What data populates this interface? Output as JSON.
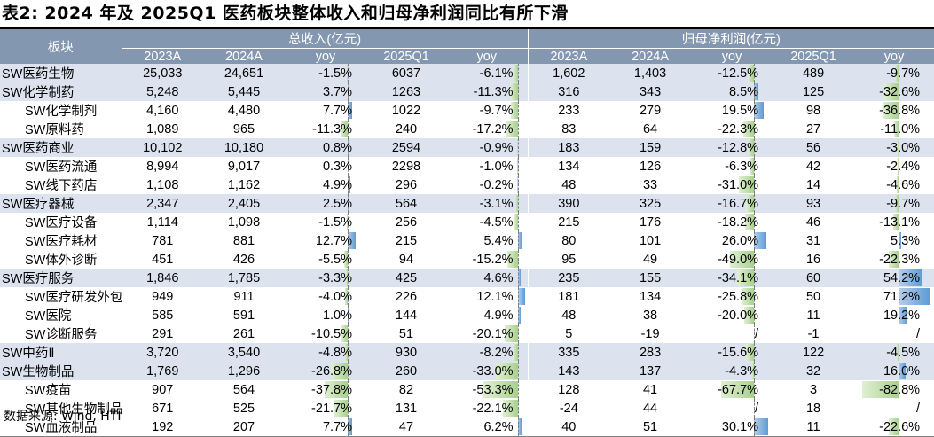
{
  "title": "表2:  2024 年及 2025Q1 医药板块整体收入和归母净利润同比有所下滑",
  "source": "数据来源:  Wind,  HTI",
  "headers": {
    "sector": "板块",
    "revenue_group": "总收入(亿元)",
    "profit_group": "归母净利润(亿元)",
    "cols": [
      "2023A",
      "2024A",
      "yoy",
      "2025Q1",
      "yoy",
      "2023A",
      "2024A",
      "yoy",
      "2025Q1",
      "yoy"
    ]
  },
  "rows": [
    {
      "name": "SW医药生物",
      "level": 1,
      "rev23": "25,033",
      "rev24": "24,651",
      "rev_yoy": "-1.5%",
      "rev_yoy_num": -1.5,
      "rev25q1": "6037",
      "rev25q1_yoy": "-6.1%",
      "rev25q1_yoy_num": -6.1,
      "np23": "1,602",
      "np24": "1,403",
      "np_yoy": "-12.5%",
      "np_yoy_num": -12.5,
      "np25q1": "489",
      "np25q1_yoy": "-9.7%",
      "np25q1_yoy_num": -9.7
    },
    {
      "name": "SW化学制药",
      "level": 1,
      "rev23": "5,248",
      "rev24": "5,445",
      "rev_yoy": "3.7%",
      "rev_yoy_num": 3.7,
      "rev25q1": "1263",
      "rev25q1_yoy": "-11.3%",
      "rev25q1_yoy_num": -11.3,
      "np23": "316",
      "np24": "343",
      "np_yoy": "8.5%",
      "np_yoy_num": 8.5,
      "np25q1": "125",
      "np25q1_yoy": "-32.6%",
      "np25q1_yoy_num": -32.6
    },
    {
      "name": "SW化学制剂",
      "level": 2,
      "rev23": "4,160",
      "rev24": "4,480",
      "rev_yoy": "7.7%",
      "rev_yoy_num": 7.7,
      "rev25q1": "1022",
      "rev25q1_yoy": "-9.7%",
      "rev25q1_yoy_num": -9.7,
      "np23": "233",
      "np24": "279",
      "np_yoy": "19.5%",
      "np_yoy_num": 19.5,
      "np25q1": "98",
      "np25q1_yoy": "-36.8%",
      "np25q1_yoy_num": -36.8
    },
    {
      "name": "SW原料药",
      "level": 2,
      "rev23": "1,089",
      "rev24": "965",
      "rev_yoy": "-11.3%",
      "rev_yoy_num": -11.3,
      "rev25q1": "240",
      "rev25q1_yoy": "-17.2%",
      "rev25q1_yoy_num": -17.2,
      "np23": "83",
      "np24": "64",
      "np_yoy": "-22.3%",
      "np_yoy_num": -22.3,
      "np25q1": "27",
      "np25q1_yoy": "-11.0%",
      "np25q1_yoy_num": -11.0
    },
    {
      "name": "SW医药商业",
      "level": 1,
      "rev23": "10,102",
      "rev24": "10,180",
      "rev_yoy": "0.8%",
      "rev_yoy_num": 0.8,
      "rev25q1": "2594",
      "rev25q1_yoy": "-0.9%",
      "rev25q1_yoy_num": -0.9,
      "np23": "183",
      "np24": "159",
      "np_yoy": "-12.8%",
      "np_yoy_num": -12.8,
      "np25q1": "56",
      "np25q1_yoy": "-3.0%",
      "np25q1_yoy_num": -3.0
    },
    {
      "name": "SW医药流通",
      "level": 2,
      "rev23": "8,994",
      "rev24": "9,017",
      "rev_yoy": "0.3%",
      "rev_yoy_num": 0.3,
      "rev25q1": "2298",
      "rev25q1_yoy": "-1.0%",
      "rev25q1_yoy_num": -1.0,
      "np23": "134",
      "np24": "126",
      "np_yoy": "-6.3%",
      "np_yoy_num": -6.3,
      "np25q1": "42",
      "np25q1_yoy": "-2.4%",
      "np25q1_yoy_num": -2.4
    },
    {
      "name": "SW线下药店",
      "level": 2,
      "rev23": "1,108",
      "rev24": "1,162",
      "rev_yoy": "4.9%",
      "rev_yoy_num": 4.9,
      "rev25q1": "296",
      "rev25q1_yoy": "-0.2%",
      "rev25q1_yoy_num": -0.2,
      "np23": "48",
      "np24": "33",
      "np_yoy": "-31.0%",
      "np_yoy_num": -31.0,
      "np25q1": "14",
      "np25q1_yoy": "-4.6%",
      "np25q1_yoy_num": -4.6
    },
    {
      "name": "SW医疗器械",
      "level": 1,
      "rev23": "2,347",
      "rev24": "2,405",
      "rev_yoy": "2.5%",
      "rev_yoy_num": 2.5,
      "rev25q1": "564",
      "rev25q1_yoy": "-3.1%",
      "rev25q1_yoy_num": -3.1,
      "np23": "390",
      "np24": "325",
      "np_yoy": "-16.7%",
      "np_yoy_num": -16.7,
      "np25q1": "93",
      "np25q1_yoy": "-9.7%",
      "np25q1_yoy_num": -9.7
    },
    {
      "name": "SW医疗设备",
      "level": 2,
      "rev23": "1,114",
      "rev24": "1,098",
      "rev_yoy": "-1.5%",
      "rev_yoy_num": -1.5,
      "rev25q1": "256",
      "rev25q1_yoy": "-4.5%",
      "rev25q1_yoy_num": -4.5,
      "np23": "215",
      "np24": "176",
      "np_yoy": "-18.2%",
      "np_yoy_num": -18.2,
      "np25q1": "46",
      "np25q1_yoy": "-13.1%",
      "np25q1_yoy_num": -13.1
    },
    {
      "name": "SW医疗耗材",
      "level": 2,
      "rev23": "781",
      "rev24": "881",
      "rev_yoy": "12.7%",
      "rev_yoy_num": 12.7,
      "rev25q1": "215",
      "rev25q1_yoy": "5.4%",
      "rev25q1_yoy_num": 5.4,
      "np23": "80",
      "np24": "101",
      "np_yoy": "26.0%",
      "np_yoy_num": 26.0,
      "np25q1": "31",
      "np25q1_yoy": "5.3%",
      "np25q1_yoy_num": 5.3
    },
    {
      "name": "SW体外诊断",
      "level": 2,
      "rev23": "451",
      "rev24": "426",
      "rev_yoy": "-5.5%",
      "rev_yoy_num": -5.5,
      "rev25q1": "94",
      "rev25q1_yoy": "-15.2%",
      "rev25q1_yoy_num": -15.2,
      "np23": "95",
      "np24": "49",
      "np_yoy": "-49.0%",
      "np_yoy_num": -49.0,
      "np25q1": "16",
      "np25q1_yoy": "-22.3%",
      "np25q1_yoy_num": -22.3
    },
    {
      "name": "SW医疗服务",
      "level": 1,
      "rev23": "1,846",
      "rev24": "1,785",
      "rev_yoy": "-3.3%",
      "rev_yoy_num": -3.3,
      "rev25q1": "425",
      "rev25q1_yoy": "4.6%",
      "rev25q1_yoy_num": 4.6,
      "np23": "235",
      "np24": "155",
      "np_yoy": "-34.1%",
      "np_yoy_num": -34.1,
      "np25q1": "60",
      "np25q1_yoy": "54.2%",
      "np25q1_yoy_num": 54.2
    },
    {
      "name": "SW医疗研发外包",
      "level": 2,
      "rev23": "949",
      "rev24": "911",
      "rev_yoy": "-4.0%",
      "rev_yoy_num": -4.0,
      "rev25q1": "226",
      "rev25q1_yoy": "12.1%",
      "rev25q1_yoy_num": 12.1,
      "np23": "181",
      "np24": "134",
      "np_yoy": "-25.8%",
      "np_yoy_num": -25.8,
      "np25q1": "50",
      "np25q1_yoy": "71.2%",
      "np25q1_yoy_num": 71.2
    },
    {
      "name": "SW医院",
      "level": 2,
      "rev23": "585",
      "rev24": "591",
      "rev_yoy": "1.0%",
      "rev_yoy_num": 1.0,
      "rev25q1": "144",
      "rev25q1_yoy": "4.9%",
      "rev25q1_yoy_num": 4.9,
      "np23": "48",
      "np24": "38",
      "np_yoy": "-20.0%",
      "np_yoy_num": -20.0,
      "np25q1": "11",
      "np25q1_yoy": "19.2%",
      "np25q1_yoy_num": 19.2
    },
    {
      "name": "SW诊断服务",
      "level": 2,
      "rev23": "291",
      "rev24": "261",
      "rev_yoy": "-10.5%",
      "rev_yoy_num": -10.5,
      "rev25q1": "51",
      "rev25q1_yoy": "-20.1%",
      "rev25q1_yoy_num": -20.1,
      "np23": "5",
      "np24": "-19",
      "np_yoy": "/",
      "np_yoy_num": null,
      "np25q1": "-1",
      "np25q1_yoy": "/",
      "np25q1_yoy_num": null
    },
    {
      "name": "SW中药Ⅱ",
      "level": 1,
      "rev23": "3,720",
      "rev24": "3,540",
      "rev_yoy": "-4.8%",
      "rev_yoy_num": -4.8,
      "rev25q1": "930",
      "rev25q1_yoy": "-8.2%",
      "rev25q1_yoy_num": -8.2,
      "np23": "335",
      "np24": "283",
      "np_yoy": "-15.6%",
      "np_yoy_num": -15.6,
      "np25q1": "122",
      "np25q1_yoy": "-4.5%",
      "np25q1_yoy_num": -4.5
    },
    {
      "name": "SW生物制品",
      "level": 1,
      "rev23": "1,769",
      "rev24": "1,296",
      "rev_yoy": "-26.8%",
      "rev_yoy_num": -26.8,
      "rev25q1": "260",
      "rev25q1_yoy": "-33.0%",
      "rev25q1_yoy_num": -33.0,
      "np23": "143",
      "np24": "137",
      "np_yoy": "-4.3%",
      "np_yoy_num": -4.3,
      "np25q1": "32",
      "np25q1_yoy": "16.0%",
      "np25q1_yoy_num": 16.0
    },
    {
      "name": "SW疫苗",
      "level": 2,
      "rev23": "907",
      "rev24": "564",
      "rev_yoy": "-37.8%",
      "rev_yoy_num": -37.8,
      "rev25q1": "82",
      "rev25q1_yoy": "-53.3%",
      "rev25q1_yoy_num": -53.3,
      "np23": "128",
      "np24": "41",
      "np_yoy": "-67.7%",
      "np_yoy_num": -67.7,
      "np25q1": "3",
      "np25q1_yoy": "-82.8%",
      "np25q1_yoy_num": -82.8
    },
    {
      "name": "SW其他生物制品",
      "level": 2,
      "rev23": "671",
      "rev24": "525",
      "rev_yoy": "-21.7%",
      "rev_yoy_num": -21.7,
      "rev25q1": "131",
      "rev25q1_yoy": "-22.1%",
      "rev25q1_yoy_num": -22.1,
      "np23": "-24",
      "np24": "44",
      "np_yoy": "/",
      "np_yoy_num": null,
      "np25q1": "18",
      "np25q1_yoy": "/",
      "np25q1_yoy_num": null
    },
    {
      "name": "SW血液制品",
      "level": 2,
      "rev23": "192",
      "rev24": "207",
      "rev_yoy": "7.7%",
      "rev_yoy_num": 7.7,
      "rev25q1": "47",
      "rev25q1_yoy": "6.2%",
      "rev25q1_yoy_num": 6.2,
      "np23": "40",
      "np24": "51",
      "np_yoy": "30.1%",
      "np_yoy_num": 30.1,
      "np25q1": "11",
      "np25q1_yoy": "-22.6%",
      "np25q1_yoy_num": -22.6
    }
  ],
  "colors": {
    "header_bg": "#8497b0",
    "level1_row_bg": "#dce3ef",
    "negative_bar": "#a9d08e",
    "positive_bar": "#5b9bd5"
  }
}
